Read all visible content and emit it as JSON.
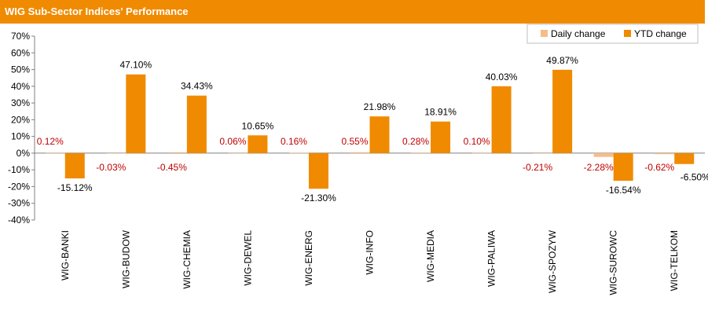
{
  "header": {
    "title": "WIG Sub-Sector Indices' Performance"
  },
  "colors": {
    "daily": "#F5BD8A",
    "ytd": "#F08A00",
    "daily_label": "#C00000",
    "header": "#F08A00"
  },
  "chart_data": {
    "type": "bar",
    "categories": [
      "WIG-BANKI",
      "WIG-BUDOW",
      "WIG-CHEMIA",
      "WIG-DEWEL",
      "WIG-ENERG",
      "WIG-INFO",
      "WIG-MEDIA",
      "WIG-PALIWA",
      "WIG-SPOZYW",
      "WIG-SUROWC",
      "WIG-TELKOM"
    ],
    "series": [
      {
        "name": "Daily change",
        "values": [
          0.12,
          -0.03,
          -0.45,
          0.06,
          0.16,
          0.55,
          0.28,
          0.1,
          -0.21,
          -2.28,
          -0.62
        ],
        "labels": [
          "0.12%",
          "-0.03%",
          "-0.45%",
          "0.06%",
          "0.16%",
          "0.55%",
          "0.28%",
          "0.10%",
          "-0.21%",
          "-2.28%",
          "-0.62%"
        ]
      },
      {
        "name": "YTD change",
        "values": [
          -15.12,
          47.1,
          34.43,
          10.65,
          -21.3,
          21.98,
          18.91,
          40.03,
          49.87,
          -16.54,
          -6.5
        ],
        "labels": [
          "-15.12%",
          "47.10%",
          "34.43%",
          "10.65%",
          "-21.30%",
          "21.98%",
          "18.91%",
          "40.03%",
          "49.87%",
          "-16.54%",
          "-6.50%"
        ]
      }
    ],
    "ylim": [
      -40,
      70
    ],
    "yticks": [
      70,
      60,
      50,
      40,
      30,
      20,
      10,
      0,
      -10,
      -20,
      -30,
      -40
    ],
    "ytick_labels": [
      "70%",
      "60%",
      "50%",
      "40%",
      "30%",
      "20%",
      "10%",
      "0%",
      "-10%",
      "-20%",
      "-30%",
      "-40%"
    ],
    "legend": {
      "position": "top-right"
    },
    "grid": false
  }
}
